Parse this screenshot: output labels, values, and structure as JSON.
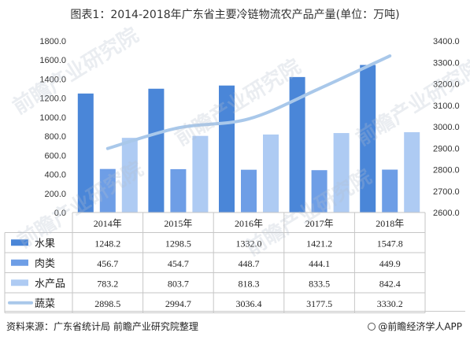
{
  "title": "图表1：2014-2018年广东省主要冷链物流农产品产量(单位：万吨)",
  "footer": {
    "source": "资料来源：广东省统计局 前瞻产业研究院整理",
    "brand": "@前瞻经济学人APP"
  },
  "watermark": "前瞻产业研究院",
  "colors": {
    "fruit": "#4a86d8",
    "meat": "#6e9ee6",
    "aquatic": "#aecbf3",
    "vegetable": "#a9c8ea"
  },
  "chart_data": {
    "type": "bar",
    "categories": [
      "2014年",
      "2015年",
      "2016年",
      "2017年",
      "2018年"
    ],
    "series": [
      {
        "name": "水果",
        "type": "bar",
        "axis": "left",
        "values": [
          1248.2,
          1298.5,
          1332.0,
          1421.2,
          1547.8
        ],
        "display": [
          "1248.2",
          "1298.5",
          "1332.0",
          "1421.2",
          "1547.8"
        ]
      },
      {
        "name": "肉类",
        "type": "bar",
        "axis": "left",
        "values": [
          456.7,
          454.7,
          448.7,
          444.1,
          449.9
        ],
        "display": [
          "456.7",
          "454.7",
          "448.7",
          "444.1",
          "449.9"
        ]
      },
      {
        "name": "水产品",
        "type": "bar",
        "axis": "left",
        "values": [
          783.2,
          803.7,
          818.3,
          833.5,
          842.4
        ],
        "display": [
          "783.2",
          "803.7",
          "818.3",
          "833.5",
          "842.4"
        ]
      },
      {
        "name": "蔬菜",
        "type": "line",
        "axis": "right",
        "values": [
          2898.5,
          2994.7,
          3036.4,
          3177.5,
          3330.2
        ],
        "display": [
          "2898.5",
          "2994.7",
          "3036.4",
          "3177.5",
          "3330.2"
        ]
      }
    ],
    "ylim_left": [
      0,
      1800
    ],
    "yticks_left": [
      "0.0",
      "200.0",
      "400.0",
      "600.0",
      "800.0",
      "1000.0",
      "1200.0",
      "1400.0",
      "1600.0",
      "1800.0"
    ],
    "ylim_right": [
      2600,
      3400
    ],
    "yticks_right": [
      "2600.0",
      "2700.0",
      "2800.0",
      "2900.0",
      "3000.0",
      "3100.0",
      "3200.0",
      "3300.0",
      "3400.0"
    ],
    "legend": "data-table",
    "grid": false
  }
}
